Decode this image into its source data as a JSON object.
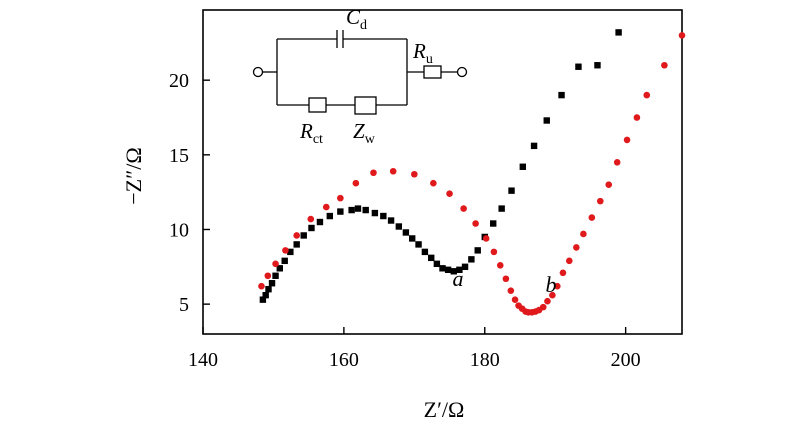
{
  "chart_data": {
    "type": "scatter",
    "title": "",
    "xlabel": "Z′/Ω",
    "ylabel": "−Z″/Ω",
    "xlim": [
      140,
      208
    ],
    "ylim": [
      3,
      24.7
    ],
    "xticks": [
      140,
      160,
      180,
      200
    ],
    "yticks": [
      5,
      10,
      15,
      20
    ],
    "grid": false,
    "legend": "none",
    "series": [
      {
        "name": "a",
        "color": "#000000",
        "marker": "square",
        "points": [
          [
            148.5,
            5.3
          ],
          [
            148.9,
            5.6
          ],
          [
            149.3,
            6.0
          ],
          [
            149.8,
            6.4
          ],
          [
            150.3,
            6.9
          ],
          [
            150.9,
            7.4
          ],
          [
            151.6,
            7.9
          ],
          [
            152.4,
            8.5
          ],
          [
            153.3,
            9.0
          ],
          [
            154.3,
            9.6
          ],
          [
            155.4,
            10.1
          ],
          [
            156.6,
            10.5
          ],
          [
            158.0,
            10.9
          ],
          [
            159.5,
            11.2
          ],
          [
            161.1,
            11.3
          ],
          [
            162.0,
            11.4
          ],
          [
            163.1,
            11.3
          ],
          [
            164.4,
            11.1
          ],
          [
            165.6,
            10.9
          ],
          [
            166.7,
            10.6
          ],
          [
            167.8,
            10.2
          ],
          [
            168.8,
            9.8
          ],
          [
            169.7,
            9.4
          ],
          [
            170.6,
            9.0
          ],
          [
            171.5,
            8.5
          ],
          [
            172.4,
            8.1
          ],
          [
            173.2,
            7.7
          ],
          [
            174.0,
            7.4
          ],
          [
            174.8,
            7.3
          ],
          [
            175.6,
            7.2
          ],
          [
            176.4,
            7.3
          ],
          [
            177.2,
            7.5
          ],
          [
            178.1,
            8.0
          ],
          [
            179.0,
            8.6
          ],
          [
            180.0,
            9.5
          ],
          [
            181.2,
            10.4
          ],
          [
            182.4,
            11.4
          ],
          [
            183.8,
            12.6
          ],
          [
            185.4,
            14.2
          ],
          [
            187.0,
            15.6
          ],
          [
            188.8,
            17.3
          ],
          [
            190.9,
            19.0
          ],
          [
            193.3,
            20.9
          ],
          [
            196.0,
            21.0
          ],
          [
            199.0,
            23.2
          ]
        ]
      },
      {
        "name": "b",
        "color": "#e0191c",
        "marker": "circle",
        "points": [
          [
            148.3,
            6.2
          ],
          [
            149.2,
            6.9
          ],
          [
            150.3,
            7.7
          ],
          [
            151.7,
            8.6
          ],
          [
            153.3,
            9.6
          ],
          [
            155.3,
            10.7
          ],
          [
            157.5,
            11.5
          ],
          [
            159.5,
            12.1
          ],
          [
            161.7,
            13.1
          ],
          [
            164.2,
            13.8
          ],
          [
            167.0,
            13.9
          ],
          [
            170.0,
            13.7
          ],
          [
            172.7,
            13.1
          ],
          [
            175.0,
            12.4
          ],
          [
            177.0,
            11.4
          ],
          [
            178.7,
            10.4
          ],
          [
            180.2,
            9.4
          ],
          [
            181.3,
            8.5
          ],
          [
            182.2,
            7.6
          ],
          [
            183.0,
            6.7
          ],
          [
            183.7,
            5.9
          ],
          [
            184.3,
            5.3
          ],
          [
            184.8,
            4.9
          ],
          [
            185.3,
            4.7
          ],
          [
            185.8,
            4.5
          ],
          [
            186.2,
            4.45
          ],
          [
            186.7,
            4.45
          ],
          [
            187.2,
            4.5
          ],
          [
            187.7,
            4.6
          ],
          [
            188.3,
            4.8
          ],
          [
            188.9,
            5.2
          ],
          [
            189.6,
            5.6
          ],
          [
            190.3,
            6.2
          ],
          [
            191.1,
            7.1
          ],
          [
            192.0,
            7.9
          ],
          [
            193.0,
            8.8
          ],
          [
            194.0,
            9.7
          ],
          [
            195.2,
            10.8
          ],
          [
            196.4,
            11.9
          ],
          [
            197.6,
            13.0
          ],
          [
            198.8,
            14.5
          ],
          [
            200.2,
            16.0
          ],
          [
            201.6,
            17.5
          ],
          [
            203.0,
            19.0
          ],
          [
            205.5,
            21.0
          ],
          [
            208.0,
            23.0
          ]
        ]
      }
    ],
    "annotations": [
      {
        "text": "a",
        "x": 176.2,
        "y": 6.2
      },
      {
        "text": "b",
        "x": 189.4,
        "y": 5.8
      }
    ],
    "inset_circuit": {
      "labels": [
        {
          "main": "C",
          "sub": "d"
        },
        {
          "main": "R",
          "sub": "u"
        },
        {
          "main": "R",
          "sub": "ct"
        },
        {
          "main": "Z",
          "sub": "w"
        }
      ]
    }
  }
}
